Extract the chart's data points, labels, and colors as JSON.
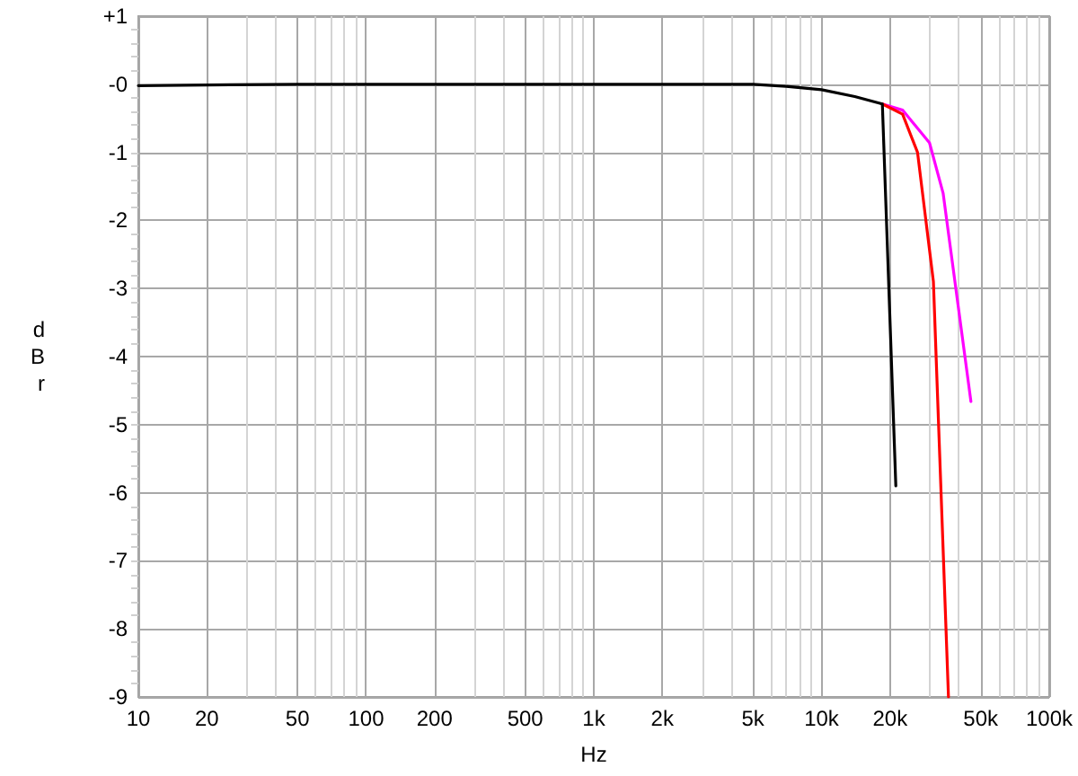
{
  "chart_data": {
    "type": "line",
    "xlabel": "Hz",
    "ylabel": "dBr",
    "log": "x",
    "xlim": [
      10,
      100000
    ],
    "xticks": [
      10,
      20,
      {
        "value": 30,
        "label": null
      },
      {
        "value": 40,
        "label": null
      },
      50,
      {
        "value": 60,
        "label": null
      },
      {
        "value": 70,
        "label": null
      },
      {
        "value": 80,
        "label": null
      },
      {
        "value": 90,
        "label": null
      },
      100,
      200,
      {
        "value": 300,
        "label": null
      },
      {
        "value": 400,
        "label": null
      },
      500,
      {
        "value": 600,
        "label": null
      },
      {
        "value": 700,
        "label": null
      },
      {
        "value": 800,
        "label": null
      },
      {
        "value": 900,
        "label": null
      },
      {
        "value": 1000,
        "label": "1k"
      },
      {
        "value": 2000,
        "label": "2k"
      },
      {
        "value": 3000,
        "label": null
      },
      {
        "value": 4000,
        "label": null
      },
      {
        "value": 5000,
        "label": "5k"
      },
      {
        "value": 6000,
        "label": null
      },
      {
        "value": 7000,
        "label": null
      },
      {
        "value": 8000,
        "label": null
      },
      {
        "value": 9000,
        "label": null
      },
      {
        "value": 10000,
        "label": "10k"
      },
      {
        "value": 20000,
        "label": "20k"
      },
      {
        "value": 30000,
        "label": null
      },
      {
        "value": 40000,
        "label": null
      },
      {
        "value": 50000,
        "label": "50k"
      },
      {
        "value": 60000,
        "label": null
      },
      {
        "value": 70000,
        "label": null
      },
      {
        "value": 80000,
        "label": null
      },
      {
        "value": 90000,
        "label": null
      },
      {
        "value": 100000,
        "label": "100k"
      }
    ],
    "ylim": [
      -9,
      1
    ],
    "yticks": [
      -9,
      -8,
      -7,
      -6,
      -5,
      -4,
      -3,
      -2,
      -1,
      {
        "value": 0,
        "label": "-0"
      },
      {
        "value": 1,
        "label": "+1"
      }
    ],
    "grid": true,
    "series": [
      {
        "color": "#ff00ff",
        "x": [
          18500,
          22700,
          29800,
          34200,
          45300
        ],
        "values": [
          -0.29,
          -0.38,
          -0.86,
          -1.6,
          -4.66
        ]
      },
      {
        "color": "#ff0000",
        "x": [
          18500,
          22700,
          26400,
          31000,
          36100
        ],
        "values": [
          -0.29,
          -0.44,
          -1.0,
          -2.9,
          -9.0
        ]
      },
      {
        "color": "#000000",
        "x": [
          10,
          20,
          50,
          100,
          200,
          500,
          1000,
          2000,
          5000,
          7000,
          10000,
          14000,
          18500,
          21200
        ],
        "values": [
          -0.02,
          -0.01,
          0,
          0,
          0,
          0,
          0,
          0,
          0,
          -0.03,
          -0.08,
          -0.18,
          -0.29,
          -5.9
        ]
      }
    ]
  }
}
